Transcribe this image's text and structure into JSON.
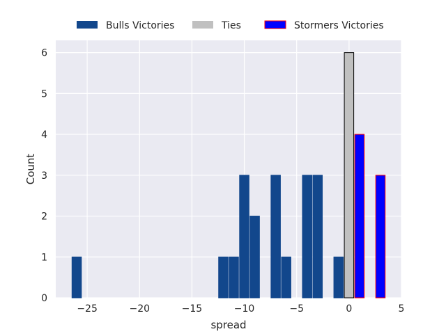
{
  "chart_data": {
    "type": "bar",
    "xlabel": "spread",
    "ylabel": "Count",
    "xlim": [
      -28,
      5
    ],
    "ylim": [
      0,
      6.3
    ],
    "xticks": [
      -25,
      -20,
      -15,
      -10,
      -5,
      0,
      5
    ],
    "xtick_labels": [
      "−25",
      "−20",
      "−15",
      "−10",
      "−5",
      "0",
      "5"
    ],
    "yticks": [
      0,
      1,
      2,
      3,
      4,
      5,
      6
    ],
    "ytick_labels": [
      "0",
      "1",
      "2",
      "3",
      "4",
      "5",
      "6"
    ],
    "grid": true,
    "legend_position": "top-center",
    "series": [
      {
        "name": "Bulls Victories",
        "color": "#12478c",
        "edge_color": "#12478c",
        "x": [
          -26,
          -12,
          -11,
          -10,
          -9,
          -7,
          -6,
          -4,
          -3,
          -1
        ],
        "values": [
          1,
          1,
          1,
          3,
          2,
          3,
          1,
          3,
          3,
          1
        ]
      },
      {
        "name": "Ties",
        "color": "#c0c0c0",
        "edge_color": "#000000",
        "x": [
          0
        ],
        "values": [
          6
        ]
      },
      {
        "name": "Stormers Victories",
        "color": "#0000ff",
        "edge_color": "#ff0000",
        "x": [
          1,
          3
        ],
        "values": [
          4,
          3
        ]
      }
    ]
  }
}
